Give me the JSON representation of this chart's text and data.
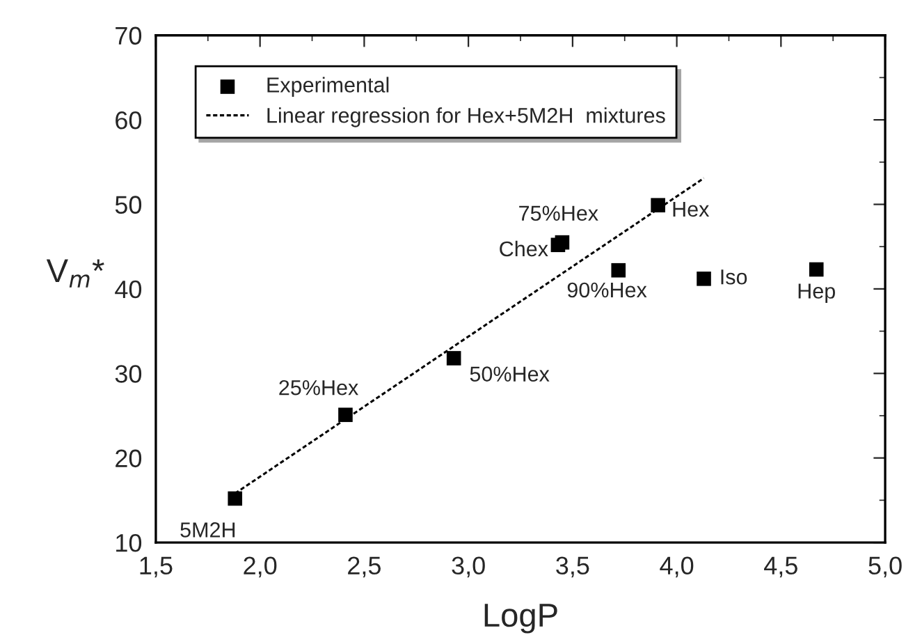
{
  "chart_data": {
    "type": "scatter",
    "xlabel": "LogP",
    "ylabel": "V$_{m}$*",
    "xlim": [
      1.5,
      5.0
    ],
    "ylim": [
      10,
      70
    ],
    "xticks": [
      {
        "value": 1.5,
        "label": "1,5"
      },
      {
        "value": 2.0,
        "label": "2,0"
      },
      {
        "value": 2.5,
        "label": "2,5"
      },
      {
        "value": 3.0,
        "label": "3,0"
      },
      {
        "value": 3.5,
        "label": "3,5"
      },
      {
        "value": 4.0,
        "label": "4,0"
      },
      {
        "value": 4.5,
        "label": "4,5"
      },
      {
        "value": 5.0,
        "label": "5,0"
      }
    ],
    "yticks": [
      10,
      20,
      30,
      40,
      50,
      60,
      70
    ],
    "grid": false,
    "legend": "top left",
    "series": [
      {
        "name": "Experimental",
        "marker": "square",
        "color": "#000000",
        "x": [
          1.88,
          2.41,
          2.93,
          3.43,
          3.45,
          3.72,
          3.91,
          4.13,
          4.67
        ],
        "values": [
          15.2,
          25.1,
          31.8,
          45.2,
          45.5,
          42.2,
          49.9,
          41.2,
          42.3
        ]
      },
      {
        "name": "Linear regression for Hex+5M2H  mixtures",
        "type": "line",
        "line_style": "dashed",
        "marker": "none",
        "color": "#000000",
        "x": [
          1.88,
          4.13
        ],
        "values": [
          15.8,
          53.1
        ]
      }
    ],
    "annotations": [
      {
        "text": "5M2H",
        "x": 1.88,
        "y": 15.2
      },
      {
        "text": "25%Hex",
        "x": 2.41,
        "y": 25.1
      },
      {
        "text": "50%Hex",
        "x": 2.93,
        "y": 31.8
      },
      {
        "text": "Chex",
        "x": 3.43,
        "y": 45.2
      },
      {
        "text": "75%Hex",
        "x": 3.45,
        "y": 45.5
      },
      {
        "text": "90%Hex",
        "x": 3.72,
        "y": 42.2
      },
      {
        "text": "Hex",
        "x": 3.91,
        "y": 49.9
      },
      {
        "text": "Iso",
        "x": 4.13,
        "y": 41.2
      },
      {
        "text": "Hep",
        "x": 4.67,
        "y": 42.3
      }
    ]
  }
}
